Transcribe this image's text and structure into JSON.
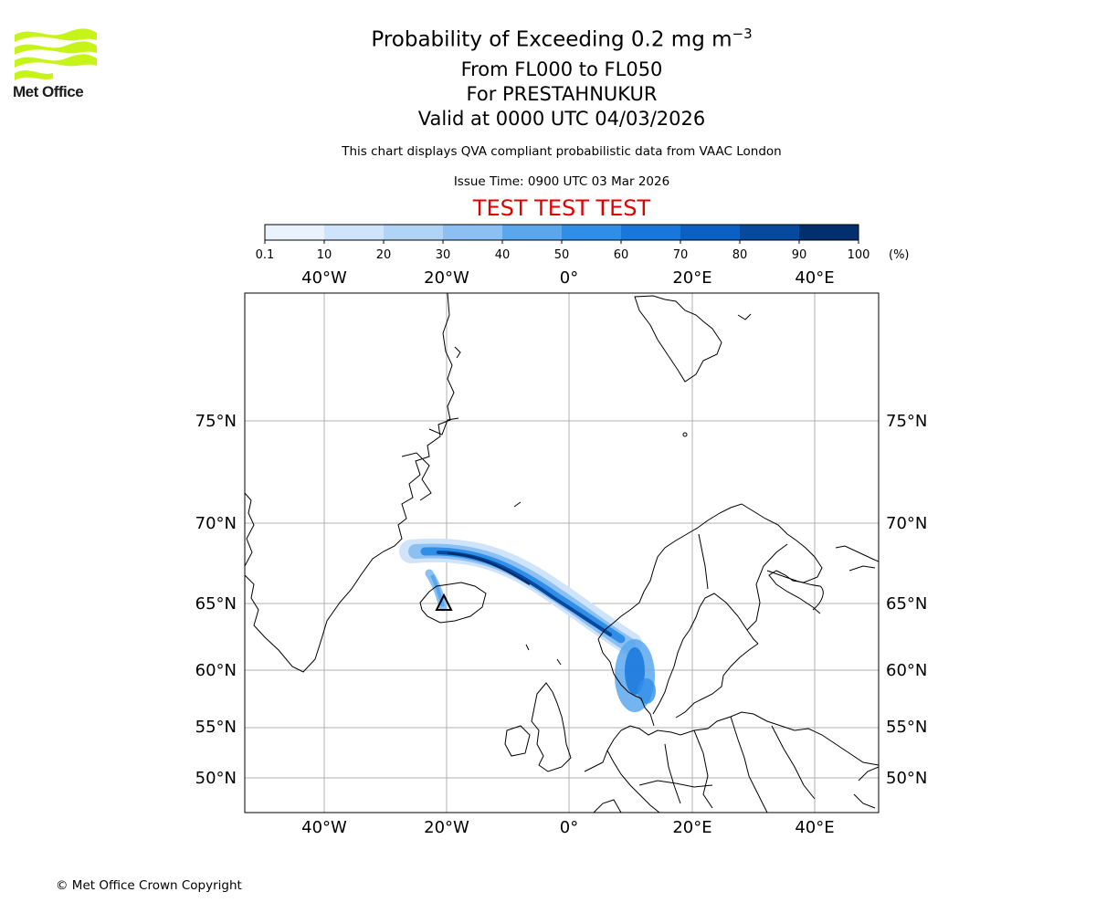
{
  "logo": {
    "name": "Met Office"
  },
  "titles": {
    "main": "Probability of Exceeding 0.2 mg m",
    "main_sup": "−3",
    "levels": "From FL000 to FL050",
    "location": "For PRESTAHNUKUR",
    "valid": "Valid at 0000 UTC 04/03/2026",
    "note": "This chart displays QVA compliant probabilistic data from VAAC London",
    "issue": "Issue Time: 0900 UTC 03 Mar 2026",
    "test_banner": "TEST TEST TEST"
  },
  "colorbar": {
    "ticks": [
      "0.1",
      "10",
      "20",
      "30",
      "40",
      "50",
      "60",
      "70",
      "80",
      "90",
      "100"
    ],
    "unit": "(%)",
    "colors": [
      "#eaf3fd",
      "#cfe4fa",
      "#b0d3f6",
      "#8cc0f2",
      "#5aa7ee",
      "#2f8fe8",
      "#1777dc",
      "#0a60c4",
      "#06499e",
      "#042f6e"
    ]
  },
  "map": {
    "lon_labels": [
      "40°W",
      "20°W",
      "0°",
      "20°E",
      "40°E"
    ],
    "lat_labels": [
      "75°N",
      "70°N",
      "65°N",
      "60°N",
      "55°N",
      "50°N"
    ],
    "volcano_marker": "triangle"
  },
  "footer": {
    "copyright": "© Met Office Crown Copyright"
  }
}
